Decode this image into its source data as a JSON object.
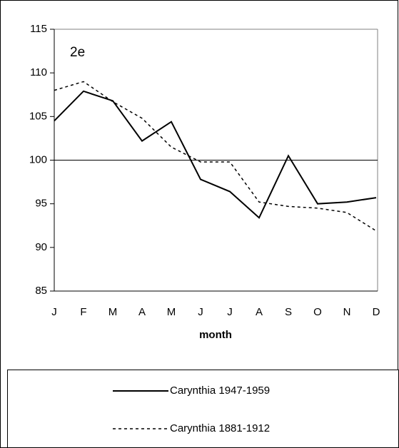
{
  "chart_data": {
    "type": "line",
    "annotation": "2e",
    "x_label": "month",
    "categories": [
      "J",
      "F",
      "M",
      "A",
      "M",
      "J",
      "J",
      "A",
      "S",
      "O",
      "N",
      "D"
    ],
    "series": [
      {
        "name": "Carynthia 1947-1959",
        "color": "#000000",
        "dash": "solid",
        "values": [
          104.5,
          107.9,
          106.8,
          102.2,
          104.4,
          97.8,
          96.4,
          93.4,
          100.5,
          95.0,
          95.2,
          95.7
        ]
      },
      {
        "name": "Carynthia 1881-1912",
        "color": "#000000",
        "dash": "dashed",
        "values": [
          108.0,
          109.0,
          106.7,
          104.8,
          101.5,
          99.8,
          99.8,
          95.2,
          94.7,
          94.5,
          94.0,
          91.9
        ]
      }
    ],
    "ylim": [
      85,
      115
    ],
    "yticks": [
      85,
      90,
      95,
      100,
      105,
      110,
      115
    ],
    "reference_line": 100
  }
}
